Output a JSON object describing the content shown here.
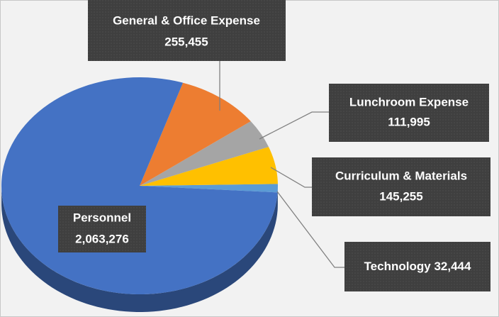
{
  "chart_data": {
    "type": "pie",
    "categories": [
      "Technology",
      "Curriculum & Materials",
      "Lunchroom Expense",
      "General & Office Expense",
      "Personnel"
    ],
    "values": [
      32444,
      145255,
      111995,
      255455,
      2063276
    ],
    "value_labels": [
      "32,444",
      "145,255",
      "111,995",
      "255,455",
      "2,063,276"
    ],
    "colors": [
      "#5b9bd5",
      "#ffc000",
      "#a5a5a5",
      "#ed7d31",
      "#4472c4"
    ]
  }
}
